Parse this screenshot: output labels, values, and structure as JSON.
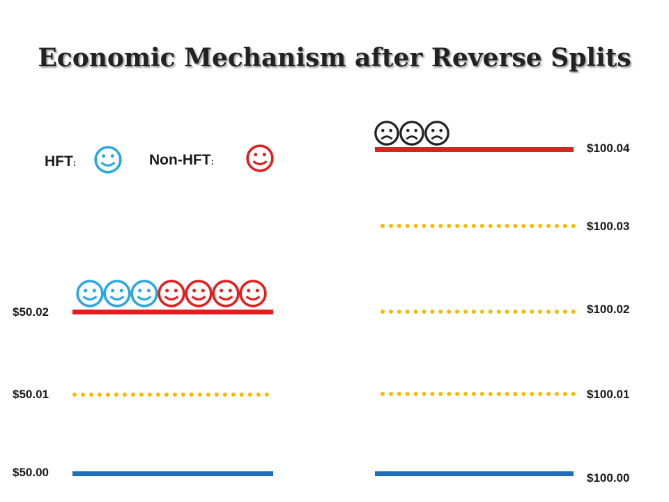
{
  "title": "Economic Mechanism after Reverse Splits",
  "legend": {
    "hft_label": "HFT",
    "nonhft_label": "Non-HFT",
    "colon": ":",
    "hft_color": "#29a8e0",
    "nonhft_color": "#e41e1e"
  },
  "left_ladder": {
    "prices": [
      "$50.02",
      "$50.01",
      "$50.00"
    ],
    "queue": [
      "hft",
      "hft",
      "hft",
      "nonhft",
      "nonhft",
      "nonhft",
      "nonhft"
    ]
  },
  "right_ladder": {
    "prices": [
      "$100.04",
      "$100.03",
      "$100.02",
      "$100.01",
      "$100.00"
    ],
    "queue": [
      "sad",
      "sad",
      "sad"
    ]
  },
  "colors": {
    "ask_line": "#e41e1e",
    "tick_line": "#f5bb00",
    "bid_line": "#1f6fb8",
    "sad_face": "#222222"
  }
}
